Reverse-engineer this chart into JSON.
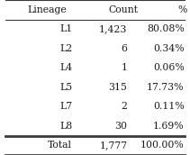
{
  "headers": [
    "Lineage",
    "Count",
    "%"
  ],
  "rows": [
    [
      "L1",
      "1,423",
      "80.08%"
    ],
    [
      "L2",
      "6",
      "0.34%"
    ],
    [
      "L4",
      "1",
      "0.06%"
    ],
    [
      "L5",
      "315",
      "17.73%"
    ],
    [
      "L7",
      "2",
      "0.11%"
    ],
    [
      "L8",
      "30",
      "1.69%"
    ]
  ],
  "total_row": [
    "Total",
    "1,777",
    "100.00%"
  ],
  "bg_color": "#ffffff",
  "border_color": "#3a3a3a",
  "text_color": "#1a1a1a",
  "font_size": 7.8
}
